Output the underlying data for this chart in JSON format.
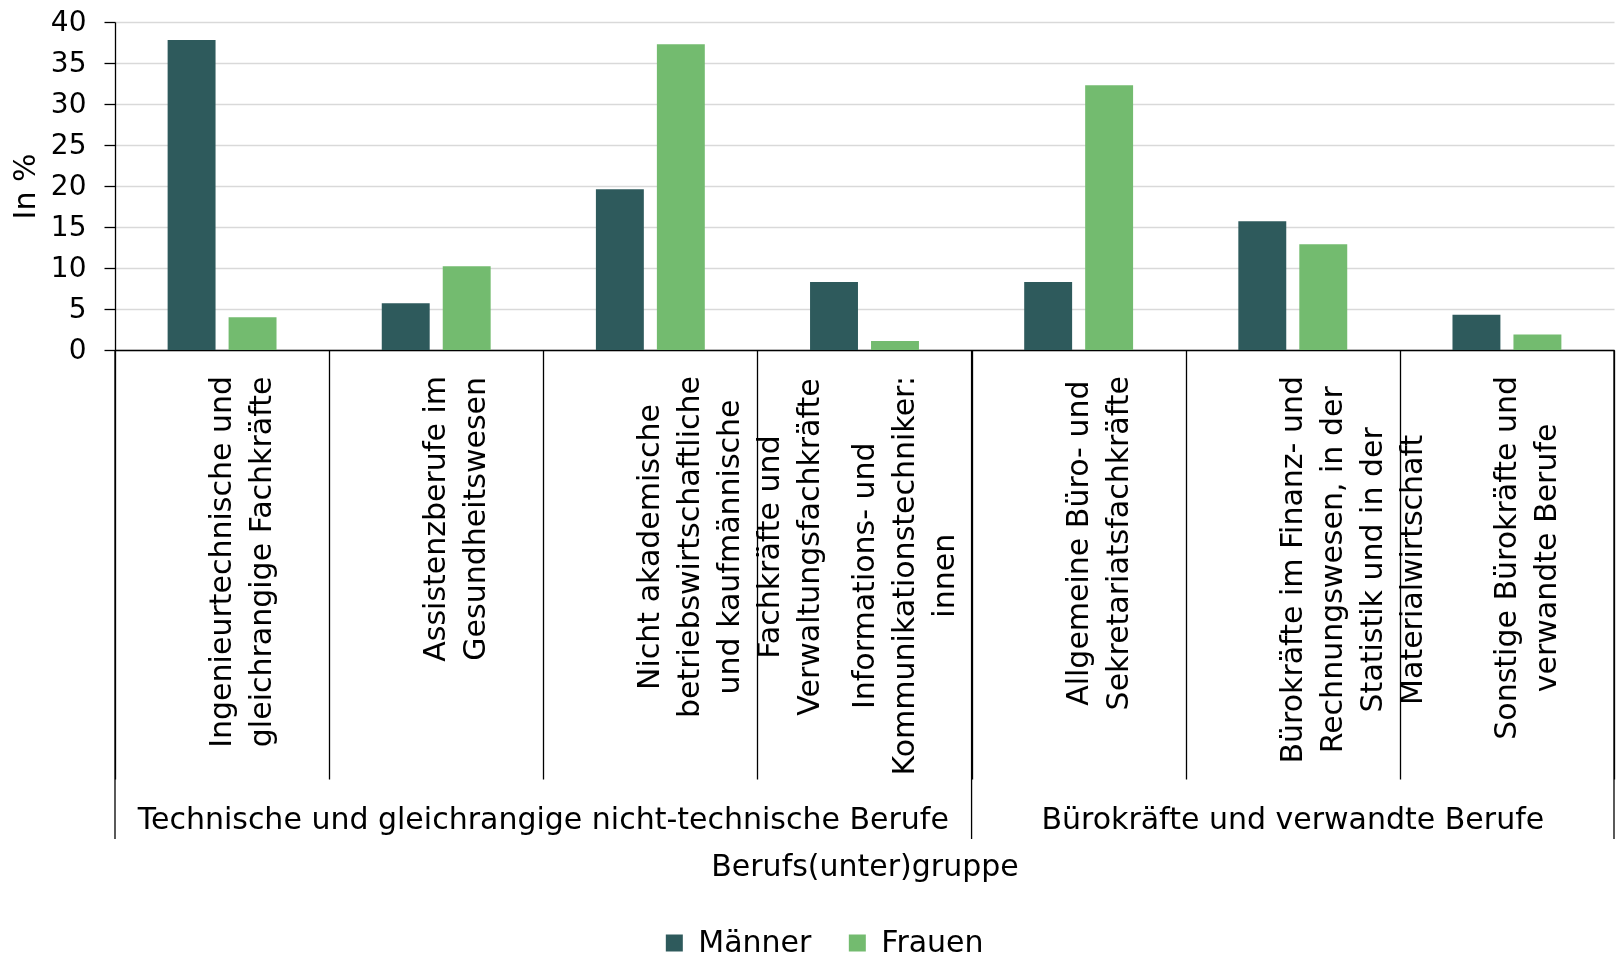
{
  "chart_data": {
    "type": "bar",
    "xlabel": "Berufs(unter)gruppe",
    "ylabel": "In %",
    "categories": [
      "Ingenieurtechnische und gleichrangige Fachkräfte",
      "Assistenzberufe im Gesundheitswesen",
      "Nicht akademische betriebswirtschaftliche und kaufmännische Fachkräfte und Verwaltungsfachkräfte",
      "Informations- und Kommunikationstechniker:innen",
      "Allgemeine Büro- und Sekretariatsfachkräfte",
      "Bürokräfte im Finanz- und Rechnungswesen, in der Statistik und in der Materialwirtschaft",
      "Sonstige Bürokräfte und verwandte Berufe"
    ],
    "series": [
      {
        "name": "Männer",
        "color": "#2e5a5c",
        "values": [
          37.8,
          5.7,
          19.6,
          8.3,
          8.3,
          15.7,
          4.3
        ]
      },
      {
        "name": "Frauen",
        "color": "#73bb6f",
        "values": [
          4.0,
          10.2,
          37.3,
          1.1,
          32.3,
          12.9,
          1.9
        ]
      }
    ],
    "ylim": [
      0,
      40
    ],
    "yticks": [
      0,
      5,
      10,
      15,
      20,
      25,
      30,
      35,
      40
    ],
    "grid": "y",
    "legend": "bottom",
    "annotations": [
      "Technische und gleichrangige nicht-technische Berufe",
      "Bürokräfte und verwandte Berufe"
    ]
  }
}
